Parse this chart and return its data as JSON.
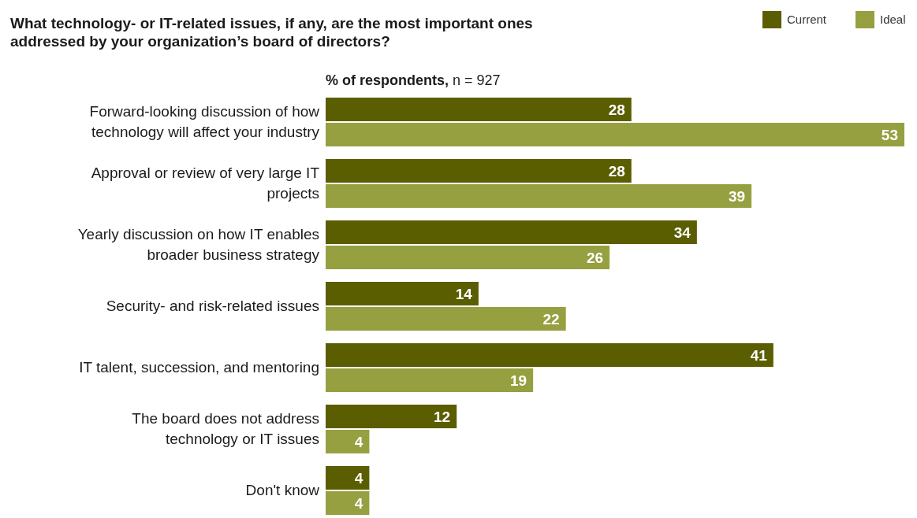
{
  "chart_data": {
    "type": "bar",
    "orientation": "horizontal",
    "title": "What technology- or IT-related issues, if any, are the most important ones addressed by your organization’s board of directors?",
    "subtitle": "% of respondents, n = 927",
    "categories": [
      "Forward-looking discussion of how technology will affect your industry",
      "Approval or review of very large IT projects",
      "Yearly discussion on how IT enables broader business strategy",
      "Security- and risk-related issues",
      "IT talent, succession, and mentoring",
      "The board does not address technology or IT issues",
      "Don't know"
    ],
    "series": [
      {
        "name": "Current",
        "color": "#5a5e00",
        "values": [
          28,
          28,
          34,
          14,
          41,
          12,
          4
        ]
      },
      {
        "name": "Ideal",
        "color": "#96a040",
        "values": [
          53,
          39,
          26,
          22,
          19,
          4,
          4
        ]
      }
    ],
    "data_labels": true,
    "legend": "top right"
  }
}
